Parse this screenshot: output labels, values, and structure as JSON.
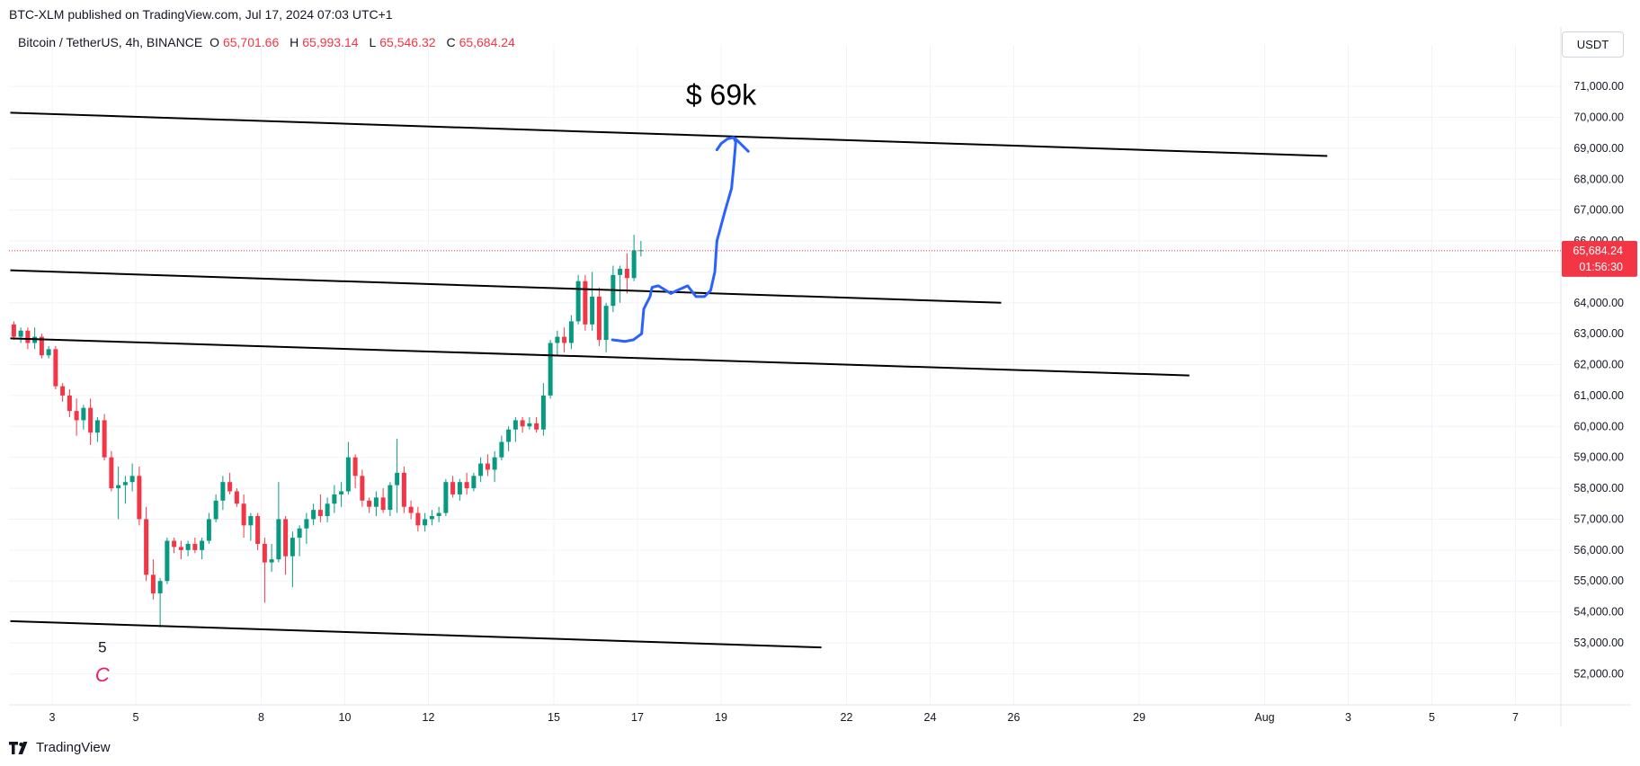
{
  "header": {
    "caption": "BTC-XLM published on TradingView.com, Jul 17, 2024 07:03 UTC+1"
  },
  "legend": {
    "symbol": "Bitcoin / TetherUS, 4h, BINANCE",
    "open_label": "O",
    "open": "65,701.66",
    "high_label": "H",
    "high": "65,993.14",
    "low_label": "L",
    "low": "65,546.32",
    "close_label": "C",
    "close": "65,684.24"
  },
  "currency": "USDT",
  "price_tag": {
    "price": "65,684.24",
    "countdown": "01:56:30"
  },
  "annotations": {
    "target_text": "$ 69k",
    "wave_number": "5",
    "wave_letter": "C"
  },
  "brand": "TradingView",
  "colors": {
    "up": "#089981",
    "down": "#f23645",
    "projection": "#2962ff",
    "trendline": "#000000",
    "wave_letter": "#e91e63"
  },
  "chart_data": {
    "type": "candlestick",
    "title": "Bitcoin / TetherUS, 4h, BINANCE",
    "ylim": [
      51400,
      72200
    ],
    "y_ticks": [
      52000,
      53000,
      54000,
      55000,
      56000,
      57000,
      58000,
      59000,
      60000,
      61000,
      62000,
      63000,
      64000,
      65000,
      66000,
      67000,
      68000,
      69000,
      70000,
      71000
    ],
    "y_tick_labels": [
      "52,000.00",
      "53,000.00",
      "54,000.00",
      "55,000.00",
      "56,000.00",
      "57,000.00",
      "58,000.00",
      "59,000.00",
      "60,000.00",
      "61,000.00",
      "62,000.00",
      "63,000.00",
      "64,000.00",
      "65,000.00",
      "66,000.00",
      "67,000.00",
      "68,000.00",
      "69,000.00",
      "70,000.00",
      "71,000.00"
    ],
    "x_ticks": [
      {
        "label": "3",
        "day": 3
      },
      {
        "label": "5",
        "day": 5
      },
      {
        "label": "8",
        "day": 8
      },
      {
        "label": "10",
        "day": 10
      },
      {
        "label": "12",
        "day": 12
      },
      {
        "label": "15",
        "day": 15
      },
      {
        "label": "17",
        "day": 17
      },
      {
        "label": "19",
        "day": 19
      },
      {
        "label": "22",
        "day": 22
      },
      {
        "label": "24",
        "day": 24
      },
      {
        "label": "26",
        "day": 26
      },
      {
        "label": "29",
        "day": 29
      },
      {
        "label": "Aug",
        "day": 32
      },
      {
        "label": "3",
        "day": 34
      },
      {
        "label": "5",
        "day": 36
      },
      {
        "label": "7",
        "day": 38
      }
    ],
    "x_start_day": 2.0,
    "last_price": 65684.24,
    "candles": [
      [
        63300,
        63400,
        62800,
        62900
      ],
      [
        62900,
        63200,
        62700,
        63100
      ],
      [
        63100,
        63200,
        62500,
        62700
      ],
      [
        62700,
        63200,
        62500,
        62900
      ],
      [
        62900,
        63000,
        62200,
        62300
      ],
      [
        62300,
        62600,
        62200,
        62500
      ],
      [
        62500,
        62600,
        61200,
        61300
      ],
      [
        61300,
        61400,
        60800,
        61000
      ],
      [
        61000,
        61200,
        60300,
        60500
      ],
      [
        60500,
        60900,
        59700,
        60200
      ],
      [
        60200,
        60700,
        59900,
        60600
      ],
      [
        60600,
        60900,
        59400,
        59800
      ],
      [
        59800,
        60300,
        59500,
        60200
      ],
      [
        60200,
        60400,
        58900,
        59000
      ],
      [
        59000,
        59200,
        57900,
        58000
      ],
      [
        58000,
        58700,
        57000,
        58100
      ],
      [
        58100,
        58400,
        57500,
        58200
      ],
      [
        58200,
        58800,
        57900,
        58400
      ],
      [
        58400,
        58700,
        56800,
        57000
      ],
      [
        57000,
        57400,
        55000,
        55200
      ],
      [
        55200,
        55700,
        54400,
        54600
      ],
      [
        54600,
        55100,
        53500,
        55000
      ],
      [
        55000,
        56400,
        54900,
        56300
      ],
      [
        56300,
        56400,
        55900,
        56100
      ],
      [
        56100,
        56300,
        55700,
        56000
      ],
      [
        56000,
        56300,
        55800,
        56200
      ],
      [
        56200,
        56400,
        55900,
        56000
      ],
      [
        56000,
        56400,
        55700,
        56300
      ],
      [
        56300,
        57200,
        56200,
        57000
      ],
      [
        57000,
        57800,
        56900,
        57600
      ],
      [
        57600,
        58400,
        57300,
        58200
      ],
      [
        58200,
        58500,
        57800,
        57900
      ],
      [
        57900,
        58000,
        57400,
        57500
      ],
      [
        57500,
        57800,
        56400,
        56800
      ],
      [
        56800,
        57200,
        56300,
        57100
      ],
      [
        57100,
        57200,
        56000,
        56200
      ],
      [
        56200,
        56400,
        54300,
        55600
      ],
      [
        55600,
        56200,
        55300,
        55700
      ],
      [
        55700,
        58200,
        55600,
        57000
      ],
      [
        57000,
        57100,
        55200,
        55800
      ],
      [
        55800,
        56600,
        54800,
        56400
      ],
      [
        56400,
        56800,
        55800,
        56700
      ],
      [
        56700,
        57200,
        56200,
        57000
      ],
      [
        57000,
        57500,
        56800,
        57300
      ],
      [
        57300,
        57800,
        56900,
        57100
      ],
      [
        57100,
        57700,
        56900,
        57500
      ],
      [
        57500,
        58100,
        57200,
        57800
      ],
      [
        57800,
        58200,
        57400,
        57900
      ],
      [
        57900,
        59500,
        57800,
        59000
      ],
      [
        59000,
        59100,
        58000,
        58400
      ],
      [
        58400,
        58600,
        57400,
        57600
      ],
      [
        57600,
        57700,
        57200,
        57400
      ],
      [
        57400,
        57900,
        57100,
        57700
      ],
      [
        57700,
        58000,
        57200,
        57300
      ],
      [
        57300,
        58200,
        57100,
        58100
      ],
      [
        58100,
        59600,
        57200,
        58500
      ],
      [
        58500,
        58700,
        57200,
        57400
      ],
      [
        57400,
        57600,
        57000,
        57200
      ],
      [
        57200,
        57400,
        56600,
        56800
      ],
      [
        56800,
        57200,
        56600,
        57000
      ],
      [
        57000,
        57300,
        56800,
        57100
      ],
      [
        57100,
        57400,
        56900,
        57200
      ],
      [
        57200,
        58300,
        57100,
        58200
      ],
      [
        58200,
        58400,
        57700,
        57800
      ],
      [
        57800,
        58300,
        57600,
        58200
      ],
      [
        58200,
        58500,
        57800,
        58000
      ],
      [
        58000,
        58500,
        57900,
        58400
      ],
      [
        58400,
        59000,
        58200,
        58800
      ],
      [
        58800,
        59100,
        58400,
        58600
      ],
      [
        58600,
        59200,
        58200,
        59000
      ],
      [
        59000,
        59700,
        58900,
        59500
      ],
      [
        59500,
        60000,
        59200,
        59900
      ],
      [
        59900,
        60300,
        59500,
        60200
      ],
      [
        60200,
        60300,
        59800,
        60000
      ],
      [
        60000,
        60300,
        59900,
        60100
      ],
      [
        60100,
        60300,
        59800,
        59900
      ],
      [
        59900,
        61400,
        59700,
        61000
      ],
      [
        61000,
        62800,
        60900,
        62700
      ],
      [
        62700,
        63100,
        62300,
        62900
      ],
      [
        62900,
        63200,
        62400,
        62700
      ],
      [
        62700,
        63600,
        62500,
        63400
      ],
      [
        63400,
        64900,
        63300,
        64700
      ],
      [
        64700,
        64900,
        63100,
        63300
      ],
      [
        63300,
        65000,
        63100,
        64200
      ],
      [
        64200,
        64500,
        62600,
        62800
      ],
      [
        62800,
        64000,
        62400,
        63900
      ],
      [
        63900,
        65200,
        63700,
        64900
      ],
      [
        64900,
        65200,
        64000,
        65100
      ],
      [
        65100,
        65600,
        64300,
        64800
      ],
      [
        64800,
        66200,
        64700,
        65700
      ],
      [
        65700,
        66000,
        65500,
        65700
      ]
    ],
    "trendlines": [
      {
        "p1": [
          2.0,
          70150
        ],
        "p2": [
          33.5,
          68750
        ]
      },
      {
        "p1": [
          2.0,
          65050
        ],
        "p2": [
          25.7,
          64000
        ]
      },
      {
        "p1": [
          2.0,
          62850
        ],
        "p2": [
          30.2,
          61650
        ]
      },
      {
        "p1": [
          2.0,
          53700
        ],
        "p2": [
          21.4,
          52850
        ]
      }
    ],
    "projection_path": [
      [
        16.4,
        62800
      ],
      [
        16.7,
        62750
      ],
      [
        16.9,
        62800
      ],
      [
        17.1,
        63000
      ],
      [
        17.15,
        63800
      ],
      [
        17.3,
        64200
      ],
      [
        17.35,
        64500
      ],
      [
        17.5,
        64550
      ],
      [
        17.8,
        64300
      ],
      [
        17.95,
        64400
      ],
      [
        18.2,
        64550
      ],
      [
        18.4,
        64200
      ],
      [
        18.6,
        64200
      ],
      [
        18.75,
        64400
      ],
      [
        18.85,
        65000
      ],
      [
        18.9,
        66000
      ],
      [
        19.1,
        67000
      ],
      [
        19.25,
        67700
      ],
      [
        19.3,
        68400
      ],
      [
        19.35,
        69200
      ],
      [
        19.3,
        69350
      ],
      [
        19.15,
        69300
      ],
      [
        19.0,
        69150
      ],
      [
        18.9,
        68950
      ]
    ],
    "projection_arrow_right": [
      [
        19.35,
        69300
      ],
      [
        19.5,
        69100
      ],
      [
        19.65,
        68900
      ]
    ],
    "labels": [
      {
        "text_key": "wave_number",
        "x": 4.2,
        "y": 52700
      },
      {
        "text_key": "wave_letter",
        "x": 4.2,
        "y": 51750
      },
      {
        "text_key": "target_text",
        "x": 19.0,
        "y": 70400
      }
    ]
  }
}
